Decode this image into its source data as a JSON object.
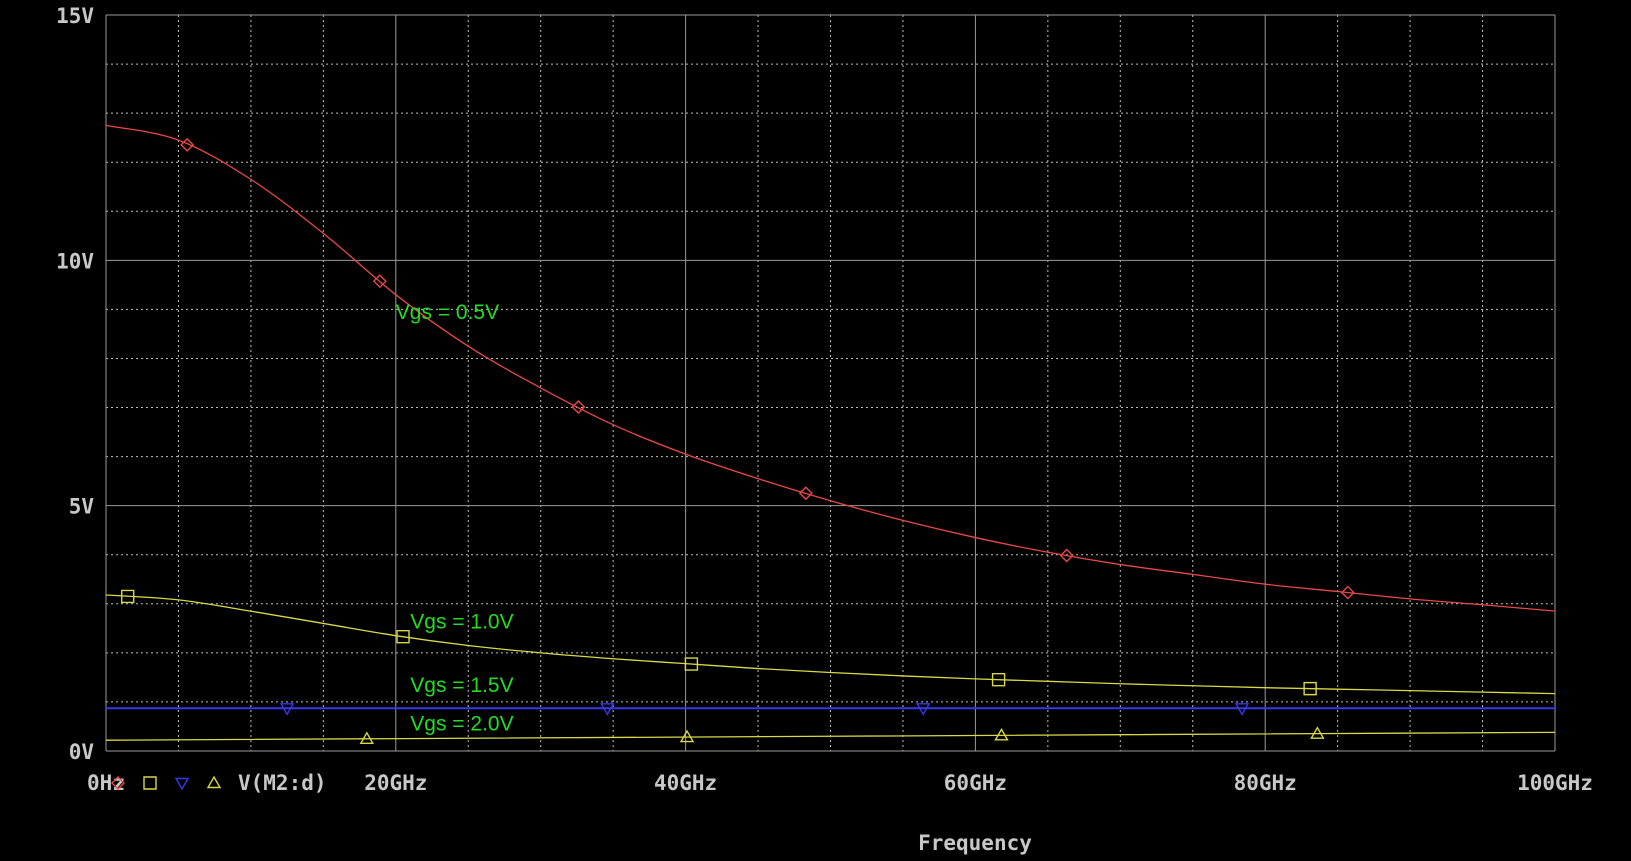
{
  "chart_data": {
    "type": "line",
    "xlabel": "Frequency",
    "ylabel": "",
    "xlim": [
      0,
      100
    ],
    "ylim": [
      0,
      15
    ],
    "x_unit": "GHz",
    "y_unit": "V",
    "xticks": [
      0,
      20,
      40,
      60,
      80,
      100
    ],
    "xtick_labels": [
      "0Hz",
      "20GHz",
      "40GHz",
      "60GHz",
      "80GHz",
      "100GHz"
    ],
    "yticks": [
      0,
      5,
      10,
      15
    ],
    "ytick_labels": [
      "0V",
      "5V",
      "10V",
      "15V"
    ],
    "grid": true,
    "legend_label": "V(M2:d)",
    "series": [
      {
        "marker": "diamond",
        "color": "#e84848",
        "annotation": "Vgs = 0.5V",
        "x": [
          0,
          5,
          10,
          15,
          20,
          25,
          30,
          35,
          40,
          45,
          50,
          55,
          60,
          65,
          70,
          75,
          80,
          85,
          90,
          95,
          100
        ],
        "values": [
          12.75,
          12.45,
          11.65,
          10.55,
          9.3,
          8.25,
          7.4,
          6.65,
          6.05,
          5.55,
          5.1,
          4.7,
          4.35,
          4.05,
          3.8,
          3.6,
          3.4,
          3.25,
          3.1,
          2.98,
          2.85
        ],
        "marker_x": [
          5.6,
          18.9,
          32.6,
          48.3,
          66.3,
          85.7
        ]
      },
      {
        "marker": "square",
        "color": "#d8d848",
        "annotation": "Vgs = 1.0V",
        "x": [
          0,
          5,
          10,
          15,
          20,
          25,
          30,
          35,
          40,
          45,
          50,
          55,
          60,
          65,
          70,
          75,
          80,
          85,
          90,
          95,
          100
        ],
        "values": [
          3.18,
          3.08,
          2.85,
          2.6,
          2.35,
          2.15,
          2.0,
          1.88,
          1.78,
          1.68,
          1.6,
          1.53,
          1.47,
          1.42,
          1.37,
          1.33,
          1.29,
          1.26,
          1.23,
          1.2,
          1.17
        ],
        "marker_x": [
          1.5,
          20.5,
          40.4,
          61.6,
          83.1
        ]
      },
      {
        "marker": "triangle-down",
        "color": "#3838e8",
        "annotation": "Vgs = 1.5V",
        "x": [
          0,
          100
        ],
        "values": [
          0.87,
          0.87
        ],
        "marker_x": [
          12.5,
          34.6,
          56.4,
          78.4
        ]
      },
      {
        "marker": "triangle-up",
        "color": "#d8d848",
        "annotation": "Vgs = 2.0V",
        "x": [
          0,
          100
        ],
        "values": [
          0.22,
          0.38
        ],
        "marker_x": [
          18.0,
          40.1,
          61.8,
          83.6
        ]
      }
    ]
  }
}
